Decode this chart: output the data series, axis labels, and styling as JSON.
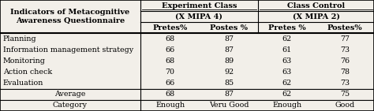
{
  "title_col_line1": "Indicators of Metacognitive",
  "title_col_line2": "Awareness Questionnaire",
  "col_headers_level1": [
    "Experiment Class",
    "Class Control"
  ],
  "col_headers_level2": [
    "(X MIPA 4)",
    "(X MIPA 2)"
  ],
  "col_headers_level3": [
    "Pretes%",
    "Postes %",
    "Pretes %",
    "Postes%"
  ],
  "rows": [
    [
      "Planning",
      "68",
      "87",
      "62",
      "77"
    ],
    [
      "Information management strategy",
      "66",
      "87",
      "61",
      "73"
    ],
    [
      "Monitoring",
      "68",
      "89",
      "63",
      "76"
    ],
    [
      "Action check",
      "70",
      "92",
      "63",
      "78"
    ],
    [
      "Evaluation",
      "66",
      "85",
      "62",
      "73"
    ]
  ],
  "average_row": [
    "Average",
    "68",
    "87",
    "62",
    "75"
  ],
  "category_row": [
    "Category",
    "Enough",
    "Veru Good",
    "Enough",
    "Good"
  ],
  "bg_color": "#f2efe9",
  "font_size": 6.8,
  "header_font_size": 7.0
}
